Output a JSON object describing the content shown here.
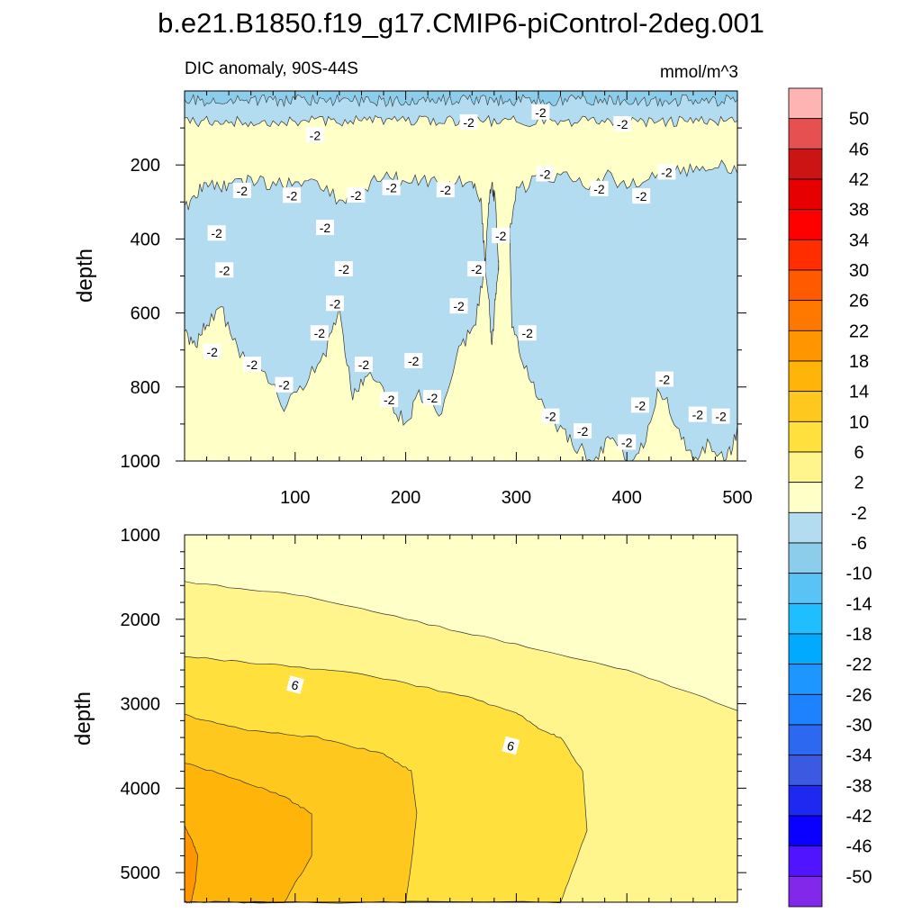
{
  "title": "b.e21.B1850.f19_g17.CMIP6-piControl-2deg.001",
  "chart_data": [
    {
      "type": "heatmap",
      "panel": "upper",
      "subtitle_left": "DIC anomaly, 90S-44S",
      "subtitle_right": "mmol/m^3",
      "ylabel": "depth",
      "xlabel": "",
      "xlim": [
        0,
        500
      ],
      "ylim": [
        1000,
        0
      ],
      "x_ticks": [
        "100",
        "200",
        "300",
        "400",
        "500"
      ],
      "y_ticks": [
        "200",
        "400",
        "600",
        "800",
        "1000"
      ],
      "contour_labels": [
        "-2",
        "-2",
        "-2",
        "-2",
        "-2",
        "-2",
        "-2",
        "-2",
        "-2",
        "-2",
        "-2",
        "-2",
        "-2",
        "-2",
        "-2",
        "-2",
        "-2",
        "-2",
        "-2",
        "-2",
        "-2",
        "-2",
        "-2",
        "-2",
        "-2",
        "-2",
        "-2",
        "-2",
        "-2",
        "-2",
        "-2",
        "-2",
        "-2",
        "-2",
        "-2",
        "-2",
        "-2"
      ],
      "regions": [
        {
          "value_range": [
            -2,
            2
          ],
          "description": "background",
          "color": "#ffffc8"
        },
        {
          "value_range": [
            -6,
            -2
          ],
          "description": "near-surface band 0-80 m",
          "color": "#b4dcf0"
        },
        {
          "value_range": [
            -10,
            -6
          ],
          "description": "surface patches",
          "color": "#8ccdeb"
        },
        {
          "value_range": [
            -6,
            -2
          ],
          "description": "subsurface lobes 200-950 m",
          "color": "#b4dcf0"
        }
      ]
    },
    {
      "type": "heatmap",
      "panel": "lower",
      "ylabel": "depth",
      "xlabel": "",
      "xlim": [
        0,
        500
      ],
      "ylim": [
        5350,
        1000
      ],
      "y_ticks": [
        "1000",
        "2000",
        "3000",
        "4000",
        "5000"
      ],
      "contour_labels": [
        "6",
        "6"
      ],
      "regions": [
        {
          "value_range": [
            -2,
            2
          ],
          "color": "#ffffc8"
        },
        {
          "value_range": [
            2,
            6
          ],
          "color": "#fff58c"
        },
        {
          "value_range": [
            6,
            10
          ],
          "color": "#ffe03c"
        },
        {
          "value_range": [
            10,
            14
          ],
          "color": "#ffc81e"
        },
        {
          "value_range": [
            14,
            18
          ],
          "color": "#ffb40a"
        },
        {
          "value_range": [
            18,
            22
          ],
          "color": "#ff9600"
        }
      ]
    }
  ],
  "colorbar": {
    "labels": [
      "50",
      "46",
      "42",
      "38",
      "34",
      "30",
      "26",
      "22",
      "18",
      "14",
      "10",
      "6",
      "2",
      "-2",
      "-6",
      "-10",
      "-14",
      "-18",
      "-22",
      "-26",
      "-30",
      "-34",
      "-38",
      "-42",
      "-46",
      "-50"
    ],
    "colors": [
      "#ffb4b4",
      "#e65050",
      "#cd1414",
      "#e60000",
      "#ff0000",
      "#ff2d00",
      "#ff5a00",
      "#ff7800",
      "#ff9600",
      "#ffb40a",
      "#ffc81e",
      "#ffe03c",
      "#fff58c",
      "#ffffc8",
      "#b4dcf0",
      "#8ccdeb",
      "#5ac3f5",
      "#1ebeff",
      "#00aaff",
      "#1e96ff",
      "#1e82ff",
      "#2d69f0",
      "#3c5ae1",
      "#1e28f0",
      "#0a00ff",
      "#5014ff",
      "#8228eb"
    ]
  }
}
